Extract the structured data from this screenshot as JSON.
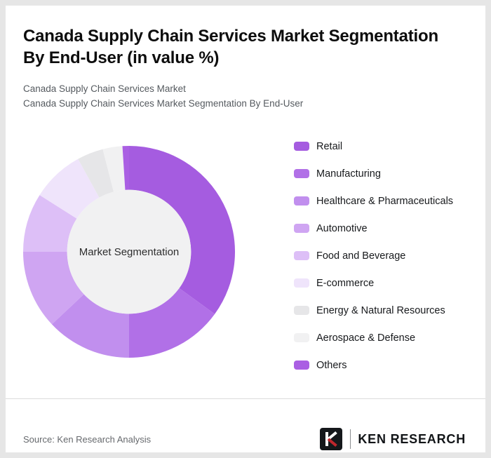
{
  "header": {
    "title_line1": "Canada Supply Chain Services Market Segmentation",
    "title_line2": "By End-User (in value %)",
    "subtitle_line1": "Canada Supply Chain Services Market",
    "subtitle_line2": "Canada Supply Chain Services Market Segmentation By End-User"
  },
  "chart_data": {
    "type": "pie",
    "subtype": "donut",
    "title": "Canada Supply Chain Services Market Segmentation By End-User (in value %)",
    "center_label": "Market Segmentation",
    "legend_position": "right",
    "values_labeled_on_chart": false,
    "values_estimated_from_arc_angles": true,
    "start_angle_deg": 0,
    "direction": "clockwise",
    "segments": [
      {
        "label": "Retail",
        "value": 35,
        "color": "#a55ce0"
      },
      {
        "label": "Manufacturing",
        "value": 15,
        "color": "#b170e7"
      },
      {
        "label": "Healthcare & Pharmaceuticals",
        "value": 13,
        "color": "#c18fee"
      },
      {
        "label": "Automotive",
        "value": 12,
        "color": "#cfa5f2"
      },
      {
        "label": "Food and Beverage",
        "value": 9,
        "color": "#ddbff7"
      },
      {
        "label": "E-commerce",
        "value": 8,
        "color": "#efe4fb"
      },
      {
        "label": "Energy & Natural Resources",
        "value": 4,
        "color": "#e6e6e8"
      },
      {
        "label": "Aerospace & Defense",
        "value": 3,
        "color": "#f1f1f2"
      },
      {
        "label": "Others",
        "value": 1,
        "color": "#aa5fe3"
      }
    ],
    "hole_fill_color": "#f1f1f2",
    "hole_radius_ratio": 0.585
  },
  "footer": {
    "source": "Source: Ken Research Analysis",
    "logo_text": "KEN RESEARCH"
  }
}
